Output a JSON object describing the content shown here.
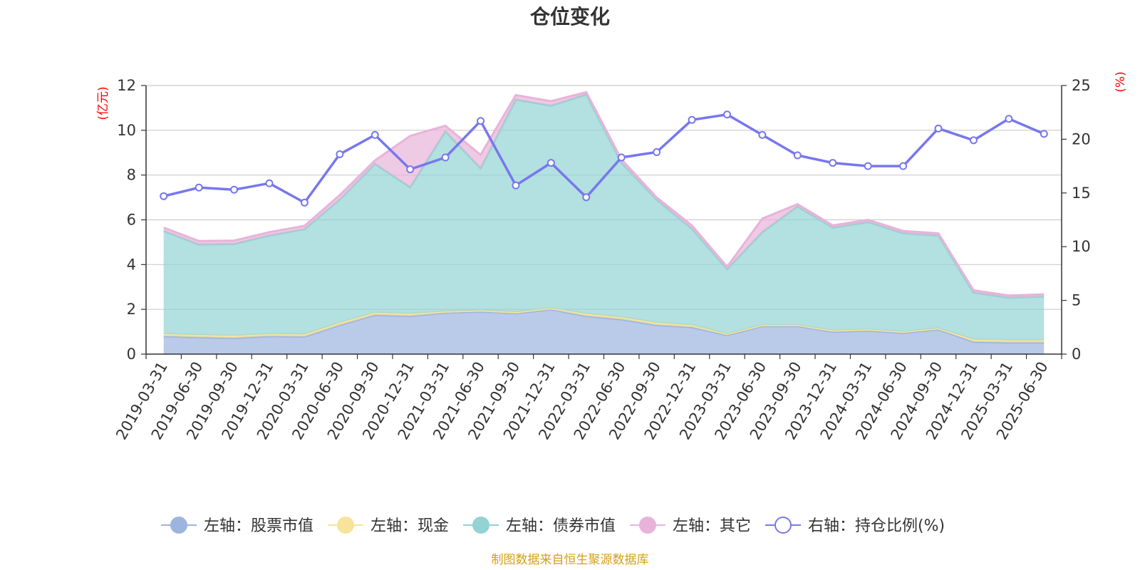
{
  "chart_data": {
    "type": "area",
    "title": "仓位变化",
    "left_axis_unit": "(亿元)",
    "right_axis_unit": "(%)",
    "source_note": "制图数据来自恒生聚源数据库",
    "left_ylim": [
      0,
      12
    ],
    "left_yticks": [
      "0",
      "2",
      "4",
      "6",
      "8",
      "10",
      "12"
    ],
    "right_ylim": [
      0,
      25
    ],
    "right_yticks": [
      "0",
      "5",
      "10",
      "15",
      "20",
      "25"
    ],
    "grid": true,
    "legend_position": "bottom",
    "categories": [
      "2019-03-31",
      "2019-06-30",
      "2019-09-30",
      "2019-12-31",
      "2020-03-31",
      "2020-06-30",
      "2020-09-30",
      "2020-12-31",
      "2021-03-31",
      "2021-06-30",
      "2021-09-30",
      "2021-12-31",
      "2022-03-31",
      "2022-06-30",
      "2022-09-30",
      "2022-12-31",
      "2023-03-31",
      "2023-06-30",
      "2023-09-30",
      "2023-12-31",
      "2024-03-31",
      "2024-06-30",
      "2024-09-30",
      "2024-12-31",
      "2025-03-31",
      "2025-06-30"
    ],
    "stacked_series": [
      {
        "name": "左轴：股票市值",
        "axis": "left",
        "color": "#9db4e0",
        "values": [
          0.8,
          0.75,
          0.72,
          0.8,
          0.78,
          1.3,
          1.75,
          1.7,
          1.85,
          1.9,
          1.82,
          2.0,
          1.7,
          1.55,
          1.3,
          1.2,
          0.85,
          1.25,
          1.25,
          1.0,
          1.05,
          0.95,
          1.1,
          0.55,
          0.52,
          0.52
        ]
      },
      {
        "name": "左轴：现金",
        "axis": "left",
        "color": "#f7e49a",
        "values": [
          0.1,
          0.1,
          0.1,
          0.1,
          0.1,
          0.1,
          0.1,
          0.1,
          0.05,
          0.05,
          0.05,
          0.05,
          0.1,
          0.1,
          0.1,
          0.1,
          0.05,
          0.05,
          0.05,
          0.05,
          0.05,
          0.05,
          0.05,
          0.1,
          0.1,
          0.1
        ]
      },
      {
        "name": "左轴：债券市值",
        "axis": "left",
        "color": "#93d3d3",
        "values": [
          4.6,
          4.05,
          4.1,
          4.4,
          4.7,
          5.5,
          6.65,
          5.65,
          8.05,
          6.35,
          9.5,
          9.05,
          9.8,
          6.9,
          5.5,
          4.3,
          2.9,
          4.15,
          5.3,
          4.6,
          4.8,
          4.4,
          4.15,
          2.1,
          1.9,
          1.95
        ]
      },
      {
        "name": "左轴：其它",
        "axis": "left",
        "color": "#e8b3d9",
        "values": [
          0.15,
          0.15,
          0.15,
          0.15,
          0.15,
          0.2,
          0.15,
          2.3,
          0.25,
          0.6,
          0.2,
          0.2,
          0.1,
          0.15,
          0.1,
          0.15,
          0.1,
          0.6,
          0.1,
          0.1,
          0.1,
          0.1,
          0.1,
          0.1,
          0.1,
          0.1
        ]
      }
    ],
    "line_series": {
      "name": "右轴：持仓比例(%)",
      "axis": "right",
      "color": "#7777ee",
      "values": [
        14.7,
        15.5,
        15.3,
        15.9,
        14.1,
        18.6,
        20.4,
        17.2,
        18.3,
        21.7,
        15.7,
        17.8,
        14.6,
        18.3,
        18.8,
        21.8,
        22.3,
        20.4,
        18.5,
        17.8,
        17.5,
        17.5,
        21.0,
        19.9,
        21.9,
        20.5
      ]
    }
  }
}
